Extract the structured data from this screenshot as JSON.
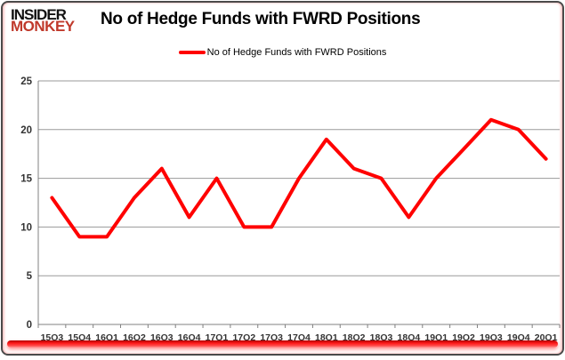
{
  "brand": {
    "line1": "INSIDER",
    "line2": "MONKEY",
    "line1_color": "#121212",
    "line2_color": "#c0392b"
  },
  "header": {
    "title": "No of Hedge Funds with FWRD Positions"
  },
  "legend": {
    "label": "No of Hedge Funds with FWRD Positions",
    "line_color": "#ff0000"
  },
  "chart_data": {
    "type": "line",
    "title": "No of Hedge Funds with FWRD Positions",
    "categories": [
      "15Q3",
      "15Q4",
      "16Q1",
      "16Q2",
      "16Q3",
      "16Q4",
      "17Q1",
      "17Q2",
      "17Q3",
      "17Q4",
      "18Q1",
      "18Q2",
      "18Q3",
      "18Q4",
      "19Q1",
      "19Q2",
      "19Q3",
      "19Q4",
      "20Q1"
    ],
    "series": [
      {
        "name": "No of Hedge Funds with FWRD Positions",
        "color": "#ff0000",
        "values": [
          13,
          9,
          9,
          13,
          16,
          11,
          15,
          10,
          10,
          15,
          19,
          16,
          15,
          11,
          15,
          18,
          21,
          20,
          17
        ]
      }
    ],
    "xlabel": "",
    "ylabel": "",
    "ylim": [
      0,
      25
    ],
    "yticks": [
      0,
      5,
      10,
      15,
      20,
      25
    ],
    "grid": true,
    "legend_position": "top"
  },
  "colors": {
    "gridline": "#9a9a9a",
    "axis": "#808080",
    "tick_label": "#333333",
    "accent_bar": "#ff0000",
    "background": "#ffffff"
  }
}
